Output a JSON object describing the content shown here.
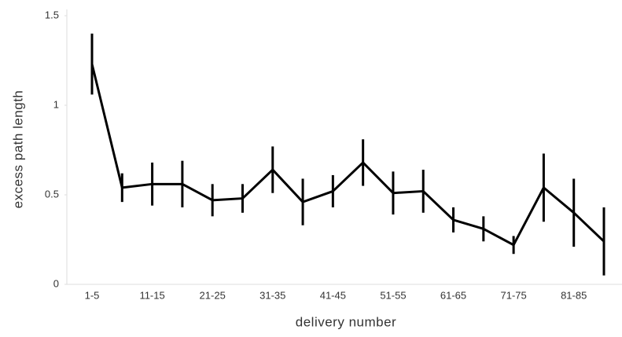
{
  "chart_data": {
    "type": "line",
    "x_label": "delivery number",
    "y_label": "excess path length",
    "categories": [
      "1-5",
      null,
      "11-15",
      null,
      "21-25",
      null,
      "31-35",
      null,
      "41-45",
      null,
      "51-55",
      null,
      "61-65",
      null,
      "71-75",
      null,
      "81-85",
      null
    ],
    "values": [
      1.23,
      0.54,
      0.56,
      0.56,
      0.47,
      0.48,
      0.64,
      0.46,
      0.52,
      0.68,
      0.51,
      0.52,
      0.36,
      0.31,
      0.22,
      0.54,
      0.4,
      0.24
    ],
    "errors": [
      0.17,
      0.08,
      0.12,
      0.13,
      0.09,
      0.08,
      0.13,
      0.13,
      0.09,
      0.13,
      0.12,
      0.12,
      0.07,
      0.07,
      0.05,
      0.19,
      0.19,
      0.19
    ],
    "color": "#000000",
    "ylim": [
      0,
      1.5
    ],
    "yticks": [
      0,
      0.5,
      1,
      1.5
    ]
  }
}
